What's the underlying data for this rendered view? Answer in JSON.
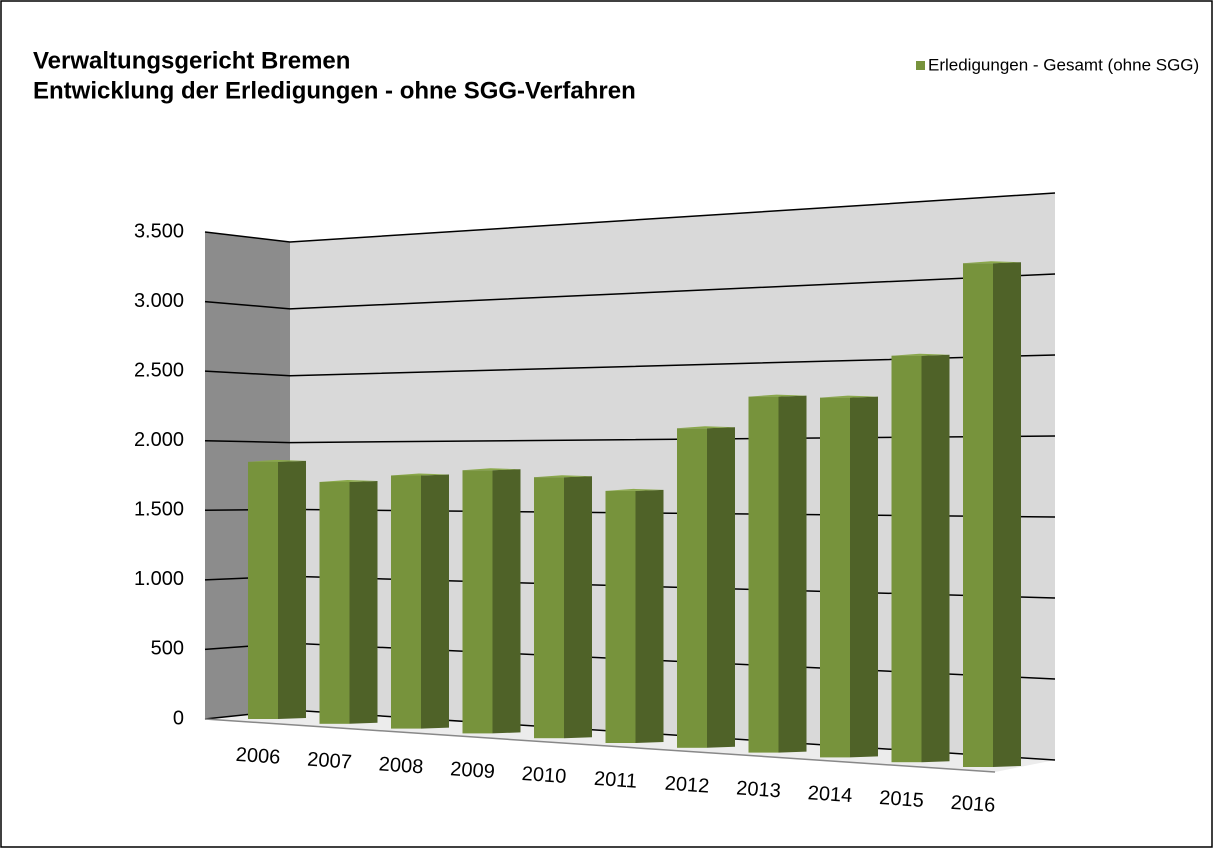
{
  "chart_data": {
    "type": "bar3d",
    "title": [
      "Verwaltungsgericht Bremen",
      "Entwicklung der Erledigungen - ohne SGG-Verfahren"
    ],
    "categories": [
      "2006",
      "2007",
      "2008",
      "2009",
      "2010",
      "2011",
      "2012",
      "2013",
      "2014",
      "2015",
      "2016"
    ],
    "series": [
      {
        "name": "Erledigungen - Gesamt (ohne SGG)",
        "color": "#77933c",
        "values": [
          1850,
          1720,
          1780,
          1830,
          1795,
          1715,
          2150,
          2370,
          2370,
          2650,
          3250
        ]
      }
    ],
    "ylim": [
      0,
      3500
    ],
    "yticks": [
      {
        "value": 0,
        "label": "0"
      },
      {
        "value": 500,
        "label": "500"
      },
      {
        "value": 1000,
        "label": "1.000"
      },
      {
        "value": 1500,
        "label": "1.500"
      },
      {
        "value": 2000,
        "label": "2.000"
      },
      {
        "value": 2500,
        "label": "2.500"
      },
      {
        "value": 3000,
        "label": "3.000"
      },
      {
        "value": 3500,
        "label": "3.500"
      }
    ],
    "grid": true,
    "legend": "top-right"
  }
}
